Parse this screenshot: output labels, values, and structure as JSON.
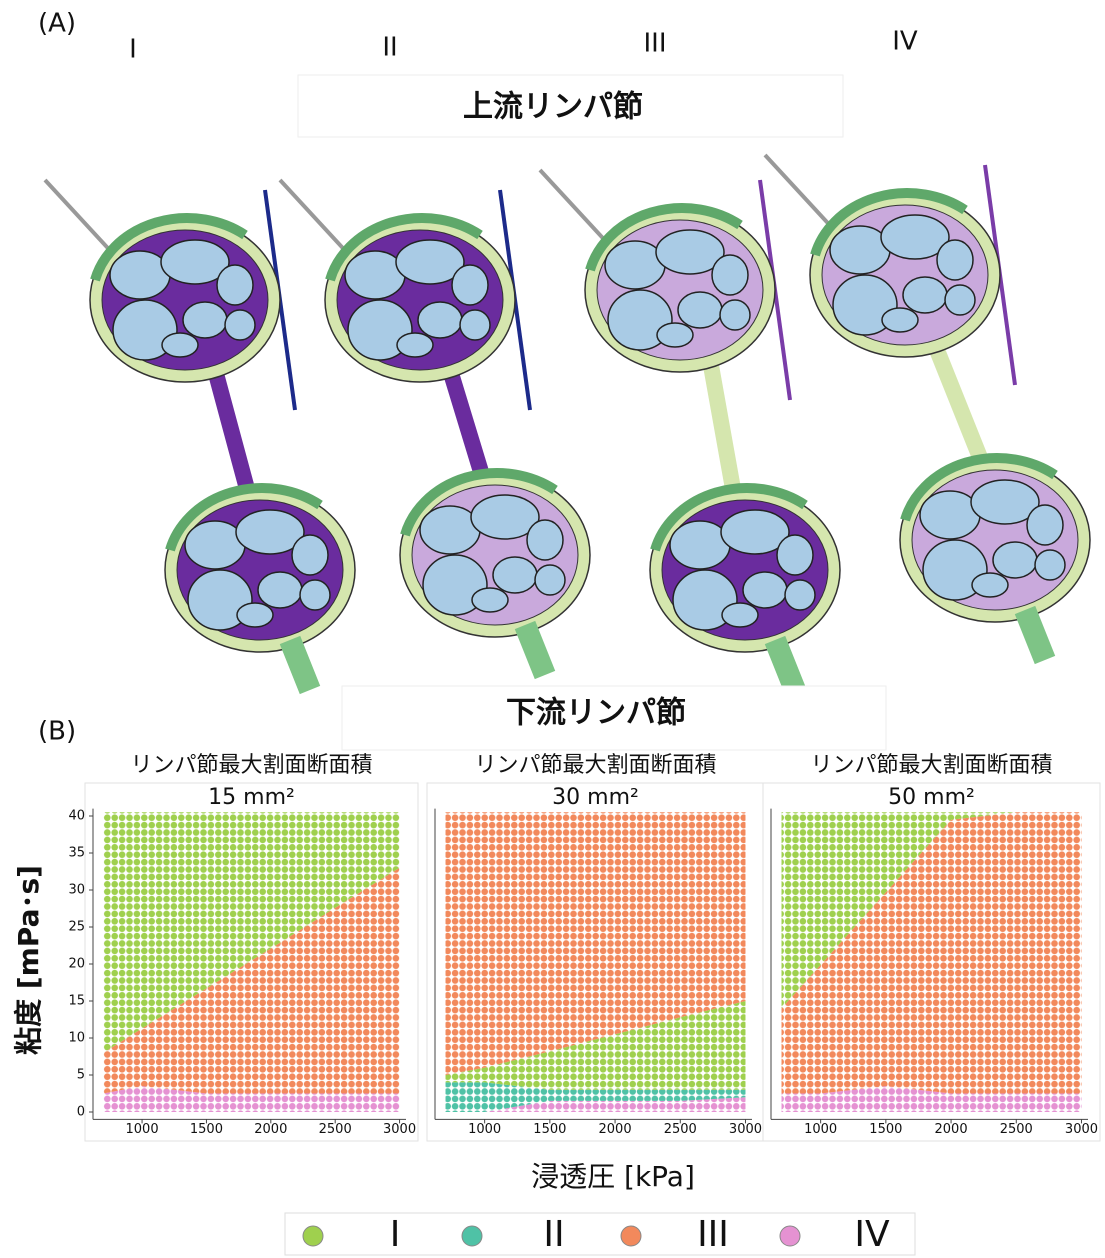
{
  "panel_a": {
    "label": "(A)",
    "columns": [
      "I",
      "II",
      "III",
      "IV"
    ],
    "upstream": "上流リンパ節",
    "downstream": "下流リンパ節"
  },
  "panel_b": {
    "label": "(B)",
    "ylabel": "粘度 [mPa･s]",
    "xlabel": "浸透圧 [kPa]",
    "legend": [
      {
        "name": "I",
        "color": "#9fd04e"
      },
      {
        "name": "II",
        "color": "#4fc2a6"
      },
      {
        "name": "III",
        "color": "#f2895c"
      },
      {
        "name": "IV",
        "color": "#e592d2"
      }
    ]
  },
  "chart_data": [
    {
      "type": "area",
      "stacked": true,
      "title": "リンパ節最大割面断面積",
      "subtitle": "15 mm²",
      "x": [
        700,
        1000,
        1500,
        2000,
        2500,
        3000
      ],
      "xlim": [
        650,
        3050
      ],
      "ylim": [
        -1,
        41
      ],
      "xticks": [
        1000,
        1500,
        2000,
        2500,
        3000
      ],
      "yticks": [
        0,
        5,
        10,
        15,
        20,
        25,
        30,
        35,
        40
      ],
      "series": [
        {
          "name": "IV",
          "color": "#e592d2",
          "values": [
            2.5,
            3.5,
            2.5,
            2.5,
            2.5,
            2.5
          ]
        },
        {
          "name": "III",
          "color": "#f2895c",
          "values": [
            5.5,
            7.8,
            14.2,
            19.6,
            25.1,
            30.5
          ]
        },
        {
          "name": "I",
          "color": "#9fd04e",
          "values": [
            32.5,
            29.2,
            23.8,
            18.4,
            12.9,
            7.5
          ]
        }
      ]
    },
    {
      "type": "area",
      "stacked": true,
      "title": "リンパ節最大割面断面積",
      "subtitle": "30 mm²",
      "x": [
        700,
        1000,
        1500,
        2000,
        2500,
        3000
      ],
      "xlim": [
        650,
        3050
      ],
      "ylim": [
        -1,
        41
      ],
      "xticks": [
        1000,
        1500,
        2000,
        2500,
        3000
      ],
      "series": [
        {
          "name": "IV",
          "color": "#e592d2",
          "values": [
            0,
            0,
            1.5,
            1.5,
            1.5,
            2
          ]
        },
        {
          "name": "II",
          "color": "#4fc2a6",
          "values": [
            4,
            4,
            1.5,
            1.5,
            1.5,
            1
          ]
        },
        {
          "name": "I",
          "color": "#9fd04e",
          "values": [
            1,
            2,
            5.2,
            7.5,
            9.8,
            12
          ]
        },
        {
          "name": "III",
          "color": "#f2895c",
          "values": [
            35.5,
            34.5,
            32.3,
            30,
            27.7,
            25.5
          ]
        }
      ]
    },
    {
      "type": "area",
      "stacked": true,
      "title": "リンパ節最大割面断面積",
      "subtitle": "50 mm²",
      "x": [
        700,
        1000,
        1500,
        2000,
        2500,
        3000
      ],
      "xlim": [
        650,
        3050
      ],
      "ylim": [
        -1,
        41
      ],
      "xticks": [
        1000,
        1500,
        2000,
        2500,
        3000
      ],
      "series": [
        {
          "name": "IV",
          "color": "#e592d2",
          "values": [
            2.5,
            2.5,
            3.5,
            2.5,
            2.5,
            2.5
          ]
        },
        {
          "name": "III",
          "color": "#f2895c",
          "values": [
            11.5,
            17.4,
            26.2,
            37,
            38,
            38
          ]
        },
        {
          "name": "I",
          "color": "#9fd04e",
          "values": [
            26.5,
            20.6,
            10.8,
            1,
            0,
            0
          ]
        }
      ]
    }
  ]
}
